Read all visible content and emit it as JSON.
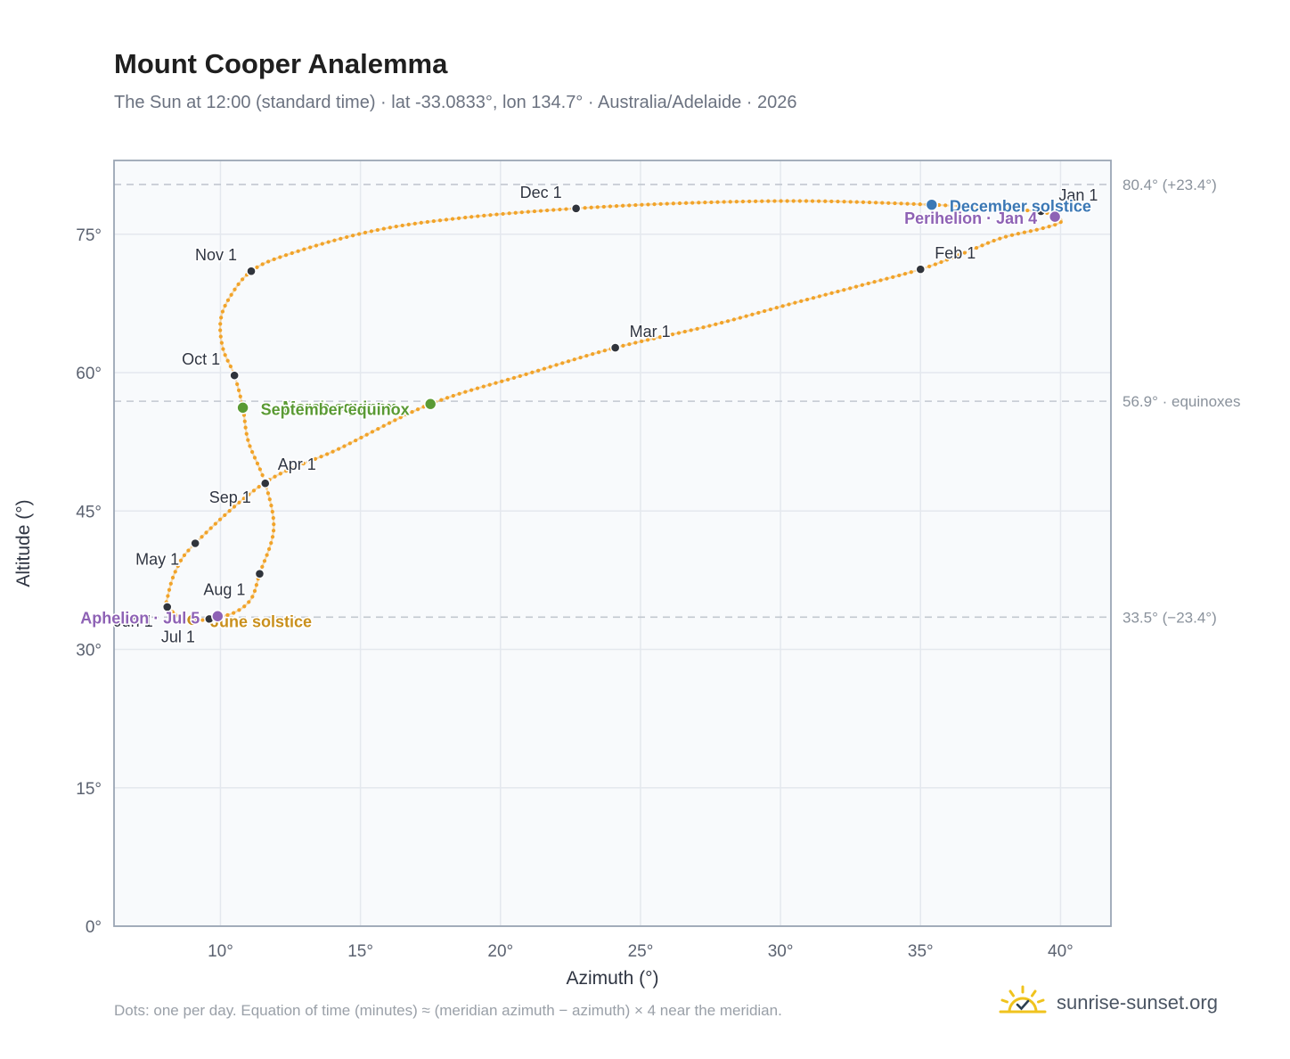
{
  "chart_data": {
    "type": "scatter",
    "title": "Mount Cooper Analemma",
    "subtitle": "The Sun at 12:00 (standard time) · lat -33.0833°, lon 134.7° · Australia/Adelaide · 2026",
    "xlabel": "Azimuth (°)",
    "ylabel": "Altitude (°)",
    "xlim": [
      6.2,
      41.8
    ],
    "ylim": [
      0,
      83
    ],
    "grid": true,
    "xticks": [
      10,
      15,
      20,
      25,
      30,
      35,
      40
    ],
    "xtick_labels": [
      "10°",
      "15°",
      "20°",
      "25°",
      "30°",
      "35°",
      "40°"
    ],
    "yticks": [
      0,
      15,
      30,
      45,
      60,
      75
    ],
    "ytick_labels": [
      "0°",
      "15°",
      "30°",
      "45°",
      "60°",
      "75°"
    ],
    "series": [
      {
        "curve_points_azimuth_altitude": [
          [
            39.3,
            77.5
          ],
          [
            39.9,
            76.9
          ],
          [
            40.0,
            76.3
          ],
          [
            39.3,
            75.6
          ],
          [
            37.9,
            74.6
          ],
          [
            36.5,
            72.9
          ],
          [
            35.0,
            71.2
          ],
          [
            32.8,
            69.4
          ],
          [
            30.3,
            67.4
          ],
          [
            27.5,
            65.1
          ],
          [
            24.1,
            62.7
          ],
          [
            21.0,
            59.9
          ],
          [
            17.5,
            56.6
          ],
          [
            14.2,
            51.7
          ],
          [
            11.6,
            48.1
          ],
          [
            9.1,
            41.5
          ],
          [
            8.4,
            38.5
          ],
          [
            8.1,
            35.5
          ],
          [
            8.1,
            34.6
          ],
          [
            8.5,
            33.7
          ],
          [
            9.1,
            33.2
          ],
          [
            9.6,
            33.3
          ],
          [
            10.5,
            34.0
          ],
          [
            11.1,
            35.5
          ],
          [
            11.4,
            38.2
          ],
          [
            11.9,
            43.0
          ],
          [
            11.6,
            48.0
          ],
          [
            11.0,
            52.5
          ],
          [
            10.8,
            56.2
          ],
          [
            10.5,
            59.7
          ],
          [
            10.1,
            62.5
          ],
          [
            10.0,
            65.5
          ],
          [
            10.3,
            68.0
          ],
          [
            11.1,
            71.0
          ],
          [
            12.5,
            72.9
          ],
          [
            15.5,
            75.4
          ],
          [
            18.7,
            76.8
          ],
          [
            22.7,
            77.8
          ],
          [
            26.8,
            78.4
          ],
          [
            31.0,
            78.6
          ],
          [
            35.4,
            78.2
          ],
          [
            37.6,
            77.8
          ],
          [
            39.3,
            77.5
          ]
        ]
      }
    ],
    "month_markers": [
      {
        "label": "Jan 1",
        "azimuth": 39.3,
        "altitude": 77.5
      },
      {
        "label": "Feb 1",
        "azimuth": 35.0,
        "altitude": 71.2
      },
      {
        "label": "Mar 1",
        "azimuth": 24.1,
        "altitude": 62.7
      },
      {
        "label": "Apr 1",
        "azimuth": 11.6,
        "altitude": 48.1
      },
      {
        "label": "May 1",
        "azimuth": 9.1,
        "altitude": 41.5
      },
      {
        "label": "Jun 1",
        "azimuth": 8.1,
        "altitude": 34.6
      },
      {
        "label": "Jul 1",
        "azimuth": 9.6,
        "altitude": 33.3
      },
      {
        "label": "Aug 1",
        "azimuth": 11.4,
        "altitude": 38.2
      },
      {
        "label": "Sep 1",
        "azimuth": 11.6,
        "altitude": 48.0
      },
      {
        "label": "Oct 1",
        "azimuth": 10.5,
        "altitude": 59.7
      },
      {
        "label": "Nov 1",
        "azimuth": 11.1,
        "altitude": 71.0
      },
      {
        "label": "Dec 1",
        "azimuth": 22.7,
        "altitude": 77.8
      }
    ],
    "events": [
      {
        "label": "December solstice",
        "azimuth": 35.4,
        "altitude": 78.2,
        "color": "#3b78b5"
      },
      {
        "label": "Perihelion · Jan 4",
        "azimuth": 39.8,
        "altitude": 76.9,
        "color": "#8e62b5"
      },
      {
        "label": "March equinox",
        "azimuth": 17.5,
        "altitude": 56.6,
        "color": "#5a9a34"
      },
      {
        "label": "September equinox",
        "azimuth": 10.8,
        "altitude": 56.2,
        "color": "#5a9a34"
      },
      {
        "label": "June solstice",
        "azimuth": 9.0,
        "altitude": 33.2,
        "color": "#c9901d"
      },
      {
        "label": "Aphelion · Jul 5",
        "azimuth": 9.9,
        "altitude": 33.6,
        "color": "#8e62b5"
      }
    ],
    "reference_lines": [
      {
        "altitude": 80.4,
        "label": "80.4° (+23.4°)"
      },
      {
        "altitude": 56.9,
        "label": "56.9° · equinoxes"
      },
      {
        "altitude": 33.5,
        "label": "33.5° (−23.4°)"
      }
    ],
    "colors": {
      "curve": "#f2a42a",
      "marker": "#30343c",
      "grid": "#e4e8ee",
      "plot_bg": "#f8fafc",
      "frame": "#9aa5b4",
      "ref_line": "#c2c8d0"
    }
  },
  "footnote": "Dots: one per day. Equation of time (minutes) ≈ (meridian azimuth − azimuth) × 4 near the meridian.",
  "brand": {
    "name": "sunrise-sunset.org",
    "icon": "sun-logo-icon"
  }
}
